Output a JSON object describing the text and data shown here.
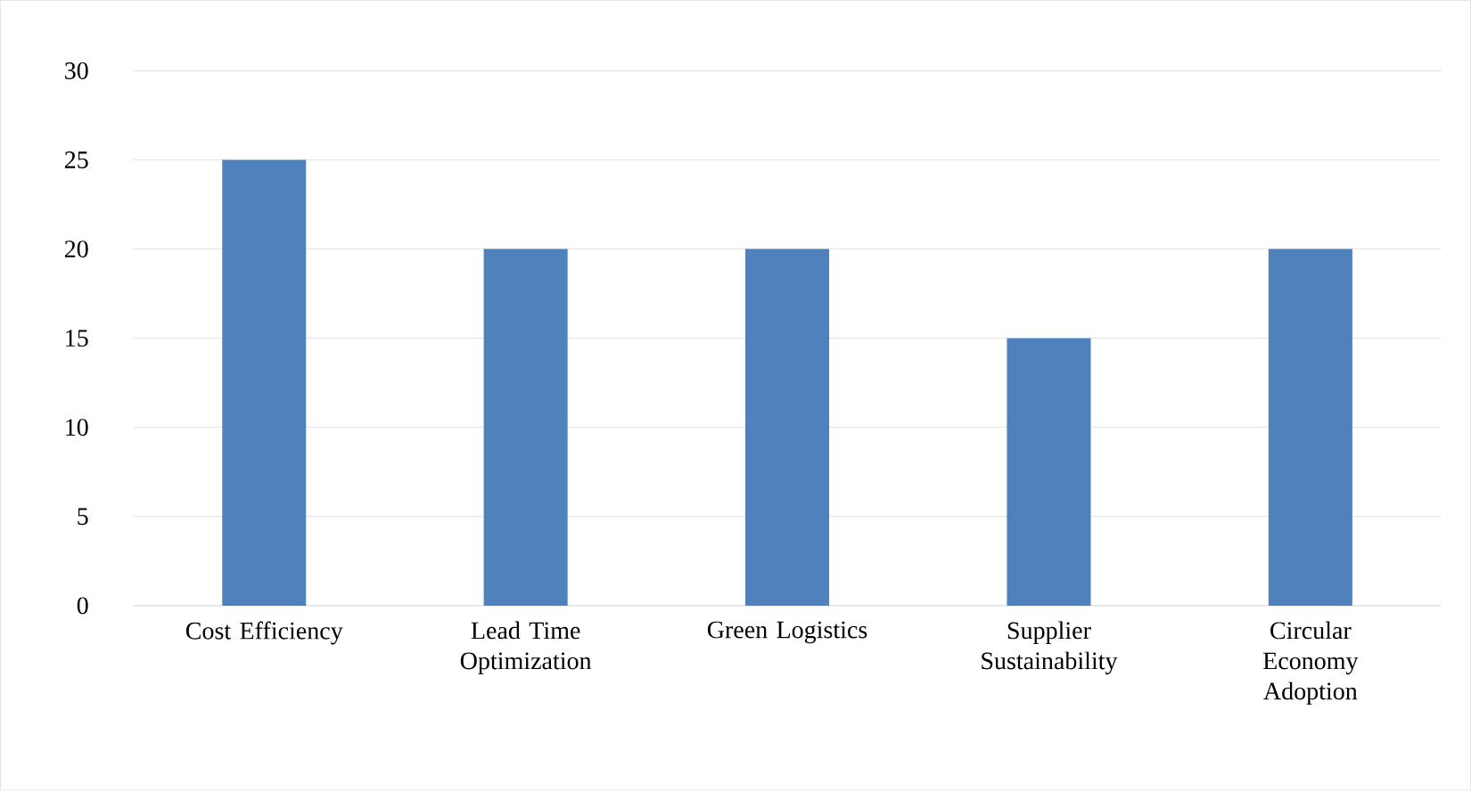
{
  "chart_data": {
    "type": "bar",
    "categories": [
      "Cost Efficiency",
      "Lead Time Optimization",
      "Green Logistics",
      "Supplier Sustainability",
      "Circular Economy Adoption"
    ],
    "values": [
      25,
      20,
      20,
      15,
      20
    ],
    "color": "#4f81bd",
    "ylim": [
      0,
      30
    ],
    "yticks": [
      0,
      5,
      10,
      15,
      20,
      25,
      30
    ],
    "grid": "y"
  }
}
